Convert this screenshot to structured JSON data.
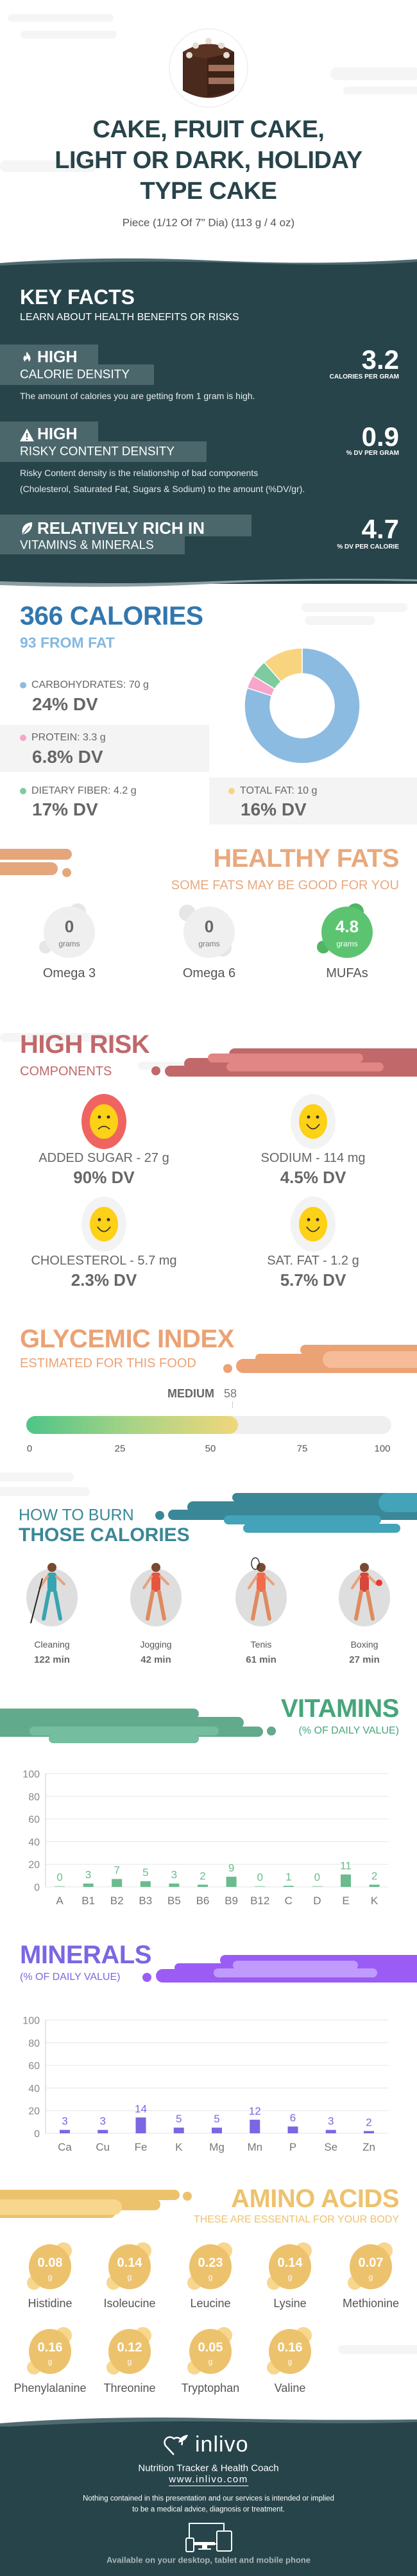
{
  "colors": {
    "dark": "#27444a",
    "box": "#4b676c",
    "calories": "#3277ae",
    "from_fat": "#84b8e0",
    "carbs": "#8cbbe2",
    "protein": "#f7a6c9",
    "fiber": "#7ecb9f",
    "fat": "#f8d47f",
    "healthy_fats": "#e8a97e",
    "mufa": "#5cc471",
    "high_risk": "#c0686a",
    "glycemic": "#eba274",
    "burn": "#3a8797",
    "vitamins": "#46a57b",
    "minerals": "#7c66e2",
    "amino": "#edc26d"
  },
  "header": {
    "title_lines": [
      "CAKE, FRUIT CAKE,",
      "LIGHT OR DARK, HOLIDAY",
      "TYPE CAKE"
    ],
    "serving": "Piece (1/12 Of 7\" Dia) (113 g / 4 oz)",
    "image_icon": "cake-image"
  },
  "key_facts": {
    "title": "KEY FACTS",
    "subtitle": "LEARN ABOUT HEALTH BENEFITS OR RISKS",
    "items": [
      {
        "icon": "flame-icon",
        "level": "HIGH",
        "label": "CALORIE DENSITY",
        "value": "3.2",
        "unit": "CALORIES PER GRAM",
        "desc_lines": [
          "The amount of calories you are getting from 1 gram is high."
        ]
      },
      {
        "icon": "warning-icon",
        "level": "HIGH",
        "label": "RISKY CONTENT DENSITY",
        "value": "0.9",
        "unit": "% DV PER GRAM",
        "desc_lines": [
          "Risky Content density is the relationship of bad components",
          "(Cholesterol, Saturated Fat, Sugars & Sodium) to the amount (%DV/gr)."
        ]
      },
      {
        "icon": "leaf-icon",
        "level": "RELATIVELY RICH  IN",
        "label": "VITAMINS & MINERALS",
        "value": "4.7",
        "unit": "% DV PER CALORIE",
        "desc_lines": []
      }
    ]
  },
  "calories": {
    "title": "366 CALORIES",
    "from_fat": "93 FROM FAT",
    "macros": [
      {
        "label": "CARBOHYDRATES: 70 g",
        "dv": "24% DV",
        "grams": 70,
        "color": "#8cbbe2"
      },
      {
        "label": "PROTEIN: 3.3 g",
        "dv": "6.8% DV",
        "grams": 3.3,
        "color": "#f7a6c9"
      },
      {
        "label": "DIETARY FIBER: 4.2 g",
        "dv": "17% DV",
        "grams": 4.2,
        "color": "#7ecb9f"
      },
      {
        "label": "TOTAL FAT: 10 g",
        "dv": "16% DV",
        "grams": 10,
        "color": "#f8d47f"
      }
    ]
  },
  "healthy_fats": {
    "title": "HEALTHY FATS",
    "subtitle": "SOME FATS MAY BE GOOD FOR YOU",
    "items": [
      {
        "value": "0",
        "unit": "grams",
        "name": "Omega 3",
        "highlight": false
      },
      {
        "value": "0",
        "unit": "grams",
        "name": "Omega 6",
        "highlight": false
      },
      {
        "value": "4.8",
        "unit": "grams",
        "name": "MUFAs",
        "highlight": true
      }
    ]
  },
  "high_risk": {
    "title": "HIGH RISK",
    "subtitle": "COMPONENTS",
    "items": [
      {
        "label": "ADDED SUGAR - 27 g",
        "dv": "90% DV",
        "mood": "sad"
      },
      {
        "label": "SODIUM - 114 mg",
        "dv": "4.5% DV",
        "mood": "happy"
      },
      {
        "label": "CHOLESTEROL - 5.7 mg",
        "dv": "2.3% DV",
        "mood": "happy"
      },
      {
        "label": "SAT. FAT - 1.2 g",
        "dv": "5.7% DV",
        "mood": "happy"
      }
    ]
  },
  "glycemic": {
    "title": "GLYCEMIC INDEX",
    "subtitle": "ESTIMATED FOR THIS FOOD",
    "level": "MEDIUM",
    "value": 58,
    "value_label": "58",
    "ticks": [
      "0",
      "25",
      "50",
      "75",
      "100"
    ]
  },
  "burn": {
    "title_top": "HOW TO BURN",
    "title_bottom": "THOSE CALORIES",
    "activities": [
      {
        "name": "Cleaning",
        "time": "122 min",
        "icon": "cleaning-person-icon"
      },
      {
        "name": "Jogging",
        "time": "42 min",
        "icon": "jogging-person-icon"
      },
      {
        "name": "Tenis",
        "time": "61 min",
        "icon": "tennis-player-icon"
      },
      {
        "name": "Boxing",
        "time": "27 min",
        "icon": "boxer-icon"
      }
    ]
  },
  "vitamins": {
    "title": "VITAMINS",
    "subtitle": "(% OF DAILY VALUE)"
  },
  "minerals": {
    "title": "MINERALS",
    "subtitle": "(% OF DAILY VALUE)"
  },
  "chart_data": [
    {
      "type": "bar",
      "title": "VITAMINS",
      "ylabel": "% of daily value",
      "ylim": [
        0,
        100
      ],
      "yticks": [
        "0",
        "20",
        "40",
        "60",
        "80",
        "100"
      ],
      "grid": true,
      "categories": [
        "A",
        "B1",
        "B2",
        "B3",
        "B5",
        "B6",
        "B9",
        "B12",
        "C",
        "D",
        "E",
        "K"
      ],
      "values": [
        0,
        3,
        7,
        5,
        3,
        2,
        9,
        0,
        1,
        0,
        11,
        2
      ]
    },
    {
      "type": "bar",
      "title": "MINERALS",
      "ylabel": "% of daily value",
      "ylim": [
        0,
        100
      ],
      "yticks": [
        "0",
        "20",
        "40",
        "60",
        "80",
        "100"
      ],
      "grid": true,
      "categories": [
        "Ca",
        "Cu",
        "Fe",
        "K",
        "Mg",
        "Mn",
        "P",
        "Se",
        "Zn"
      ],
      "values": [
        3,
        3,
        14,
        5,
        5,
        12,
        6,
        3,
        2
      ]
    }
  ],
  "amino": {
    "title": "AMINO ACIDS",
    "subtitle": "THESE ARE ESSENTIAL FOR YOUR BODY",
    "unit": "g",
    "items": [
      {
        "name": "Histidine",
        "value": "0.08"
      },
      {
        "name": "Isoleucine",
        "value": "0.14"
      },
      {
        "name": "Leucine",
        "value": "0.23"
      },
      {
        "name": "Lysine",
        "value": "0.14"
      },
      {
        "name": "Methionine",
        "value": "0.07"
      },
      {
        "name": "Phenylalanine",
        "value": "0.16"
      },
      {
        "name": "Threonine",
        "value": "0.12"
      },
      {
        "name": "Tryptophan",
        "value": "0.05"
      },
      {
        "name": "Valine",
        "value": "0.16"
      }
    ]
  },
  "footer": {
    "brand": "inlivo",
    "tagline": "Nutrition Tracker & Health Coach",
    "url": "www.inlivo.com",
    "disclaimer_lines": [
      "Nothing contained in this presentation and our services is intended or implied",
      "to be a medical advice, diagnosis or treatment."
    ],
    "available": "Available on your desktop, tablet and mobile phone"
  }
}
